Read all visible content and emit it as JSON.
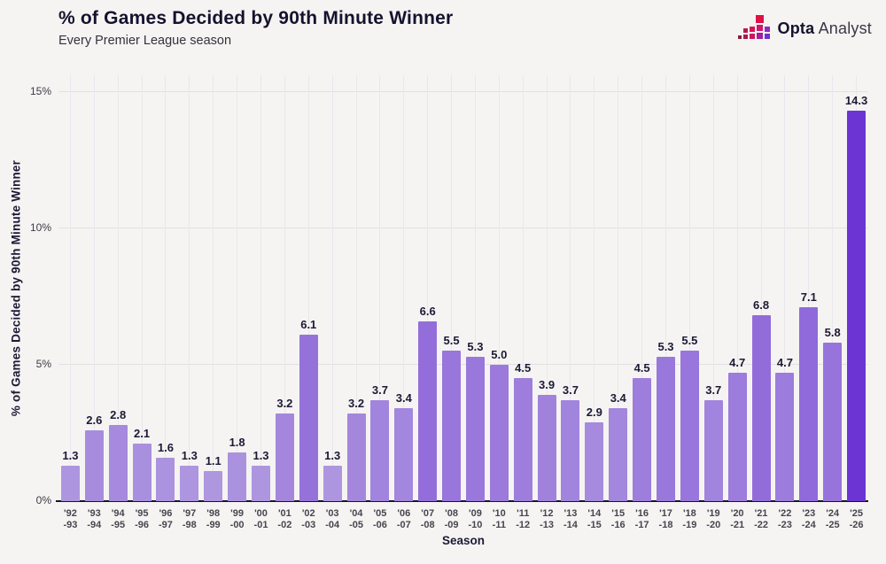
{
  "header": {
    "title": "% of Games Decided by 90th Minute Winner",
    "subtitle": "Every Premier League season"
  },
  "logo": {
    "brand_bold": "Opta",
    "brand_regular": "Analyst"
  },
  "chart_data": {
    "type": "bar",
    "title": "% of Games Decided by 90th Minute Winner",
    "subtitle": "Every Premier League season",
    "xlabel": "Season",
    "ylabel": "% of Games Decided by 90th Minute Winner",
    "ylim": [
      0,
      15.6
    ],
    "yticks": [
      0,
      5,
      10,
      15
    ],
    "ytick_labels": [
      "0%",
      "5%",
      "10%",
      "15%"
    ],
    "grid": true,
    "legend": "none",
    "categories": [
      "'92-93",
      "'93-94",
      "'94-95",
      "'95-96",
      "'96-97",
      "'97-98",
      "'98-99",
      "'99-00",
      "'00-01",
      "'01-02",
      "'02-03",
      "'03-04",
      "'04-05",
      "'05-06",
      "'06-07",
      "'07-08",
      "'08-09",
      "'09-10",
      "'10-11",
      "'11-12",
      "'12-13",
      "'13-14",
      "'14-15",
      "'15-16",
      "'16-17",
      "'17-18",
      "'18-19",
      "'19-20",
      "'20-21",
      "'21-22",
      "'22-23",
      "'23-24",
      "'24-25",
      "'25-26"
    ],
    "values": [
      1.3,
      2.6,
      2.8,
      2.1,
      1.6,
      1.3,
      1.1,
      1.8,
      1.3,
      3.2,
      6.1,
      1.3,
      3.2,
      3.7,
      3.4,
      6.6,
      5.5,
      5.3,
      5.0,
      4.5,
      3.9,
      3.7,
      2.9,
      3.4,
      4.5,
      5.3,
      5.5,
      3.7,
      4.7,
      6.8,
      4.7,
      7.1,
      5.8,
      14.3
    ],
    "value_labels": [
      "1.3",
      "2.6",
      "2.8",
      "2.1",
      "1.6",
      "1.3",
      "1.1",
      "1.8",
      "1.3",
      "3.2",
      "6.1",
      "1.3",
      "3.2",
      "3.7",
      "3.4",
      "6.6",
      "5.5",
      "5.3",
      "5.0",
      "4.5",
      "3.9",
      "3.7",
      "2.9",
      "3.4",
      "4.5",
      "5.3",
      "5.5",
      "3.7",
      "4.7",
      "6.8",
      "4.7",
      "7.1",
      "5.8",
      "14.3"
    ],
    "bar_color_scale": {
      "min_value": 1.1,
      "max_value": 14.3,
      "min_color": "#ae97df",
      "max_color": "#6c35d3"
    },
    "colors": {
      "background": "#f5f4f2",
      "axis_line": "#17142e",
      "grid_horizontal": "#e2e0e4",
      "grid_vertical": "#e9e7ec",
      "text_dark": "#15122e"
    }
  }
}
